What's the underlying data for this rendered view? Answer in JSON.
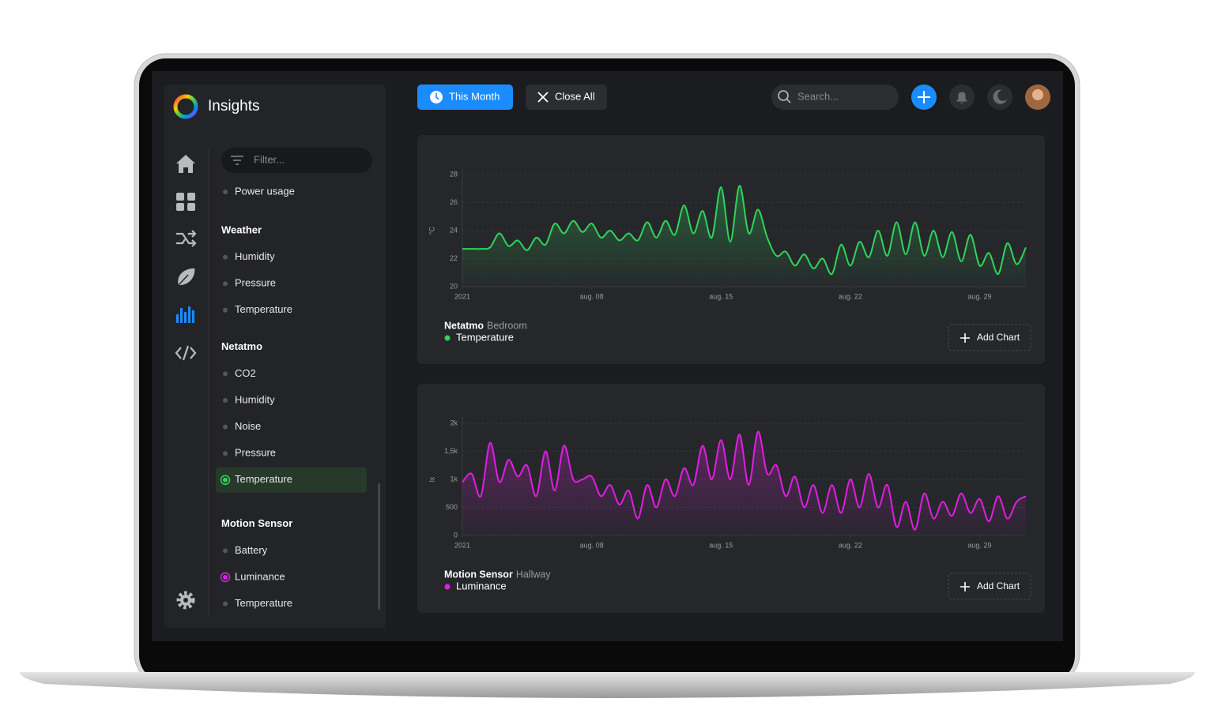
{
  "app": {
    "title": "Insights"
  },
  "toolbar": {
    "period": "This Month",
    "close": "Close All",
    "search": "Search..."
  },
  "sidebar": {
    "filter": "Filter...",
    "top_items": [
      {
        "label": "Power usage"
      }
    ],
    "groups": [
      {
        "title": "Weather",
        "items": [
          {
            "label": "Humidity"
          },
          {
            "label": "Pressure"
          },
          {
            "label": "Temperature"
          }
        ]
      },
      {
        "title": "Netatmo",
        "items": [
          {
            "label": "CO2"
          },
          {
            "label": "Humidity"
          },
          {
            "label": "Noise"
          },
          {
            "label": "Pressure"
          },
          {
            "label": "Temperature",
            "color": "#2fd45a",
            "selected": true
          }
        ]
      },
      {
        "title": "Motion Sensor",
        "items": [
          {
            "label": "Battery"
          },
          {
            "label": "Luminance",
            "color": "#e01ee0"
          },
          {
            "label": "Temperature"
          }
        ]
      }
    ]
  },
  "chart_data": [
    {
      "type": "line",
      "device": "Netatmo",
      "location": "Bedroom",
      "ylabel": "°C",
      "action": "Add Chart",
      "grid": true,
      "x": [
        0,
        0.5,
        1,
        1.5,
        2,
        2.5,
        3,
        3.5,
        4,
        4.5,
        5,
        5.5,
        6,
        6.5,
        7,
        7.5,
        8,
        8.5,
        9,
        9.5,
        10,
        10.5,
        11,
        11.5,
        12,
        12.5,
        13,
        13.5,
        14,
        14.5,
        15,
        15.5,
        16,
        16.5,
        17,
        17.5,
        18,
        18.5,
        19,
        19.5,
        20,
        20.5,
        21,
        21.5,
        22,
        22.5,
        23,
        23.5,
        24,
        24.5,
        25,
        25.5,
        26,
        26.5,
        27,
        27.5,
        28,
        28.5,
        29,
        29.5,
        30,
        30.5
      ],
      "xlim": [
        0,
        30.5
      ],
      "xticks": [
        {
          "value": 0,
          "label": "2021"
        },
        {
          "value": 7,
          "label": "aug. 08"
        },
        {
          "value": 14,
          "label": "aug. 15"
        },
        {
          "value": 21,
          "label": "aug. 22"
        },
        {
          "value": 28,
          "label": "aug. 29"
        }
      ],
      "ylim": [
        20,
        28
      ],
      "yticks": [
        20,
        22,
        24,
        26,
        28
      ],
      "series": [
        {
          "name": "Temperature",
          "color": "#2fd45a",
          "values": [
            22.7,
            22.7,
            22.7,
            22.8,
            23.8,
            22.9,
            23.3,
            22.6,
            23.5,
            23.0,
            24.5,
            23.8,
            24.7,
            23.9,
            24.5,
            23.5,
            24.0,
            23.3,
            23.8,
            23.3,
            24.6,
            23.5,
            24.7,
            23.7,
            25.8,
            23.8,
            25.4,
            23.5,
            27.1,
            23.2,
            27.2,
            23.8,
            25.5,
            23.5,
            22.2,
            22.5,
            21.5,
            22.3,
            21.3,
            22.0,
            20.9,
            23.0,
            21.5,
            23.2,
            22.1,
            24.0,
            22.2,
            24.6,
            22.3,
            24.6,
            22.2,
            24.0,
            22.1,
            23.9,
            21.8,
            23.7,
            21.5,
            22.4,
            20.9,
            23.1,
            21.6,
            22.8
          ]
        }
      ]
    },
    {
      "type": "line",
      "device": "Motion Sensor",
      "location": "Hallway",
      "ylabel": "lx",
      "action": "Add Chart",
      "grid": true,
      "x": [
        0,
        0.5,
        1,
        1.5,
        2,
        2.5,
        3,
        3.5,
        4,
        4.5,
        5,
        5.5,
        6,
        6.5,
        7,
        7.5,
        8,
        8.5,
        9,
        9.5,
        10,
        10.5,
        11,
        11.5,
        12,
        12.5,
        13,
        13.5,
        14,
        14.5,
        15,
        15.5,
        16,
        16.5,
        17,
        17.5,
        18,
        18.5,
        19,
        19.5,
        20,
        20.5,
        21,
        21.5,
        22,
        22.5,
        23,
        23.5,
        24,
        24.5,
        25,
        25.5,
        26,
        26.5,
        27,
        27.5,
        28,
        28.5,
        29,
        29.5,
        30,
        30.5
      ],
      "xlim": [
        0,
        30.5
      ],
      "xticks": [
        {
          "value": 0,
          "label": "2021"
        },
        {
          "value": 7,
          "label": "aug. 08"
        },
        {
          "value": 14,
          "label": "aug. 15"
        },
        {
          "value": 21,
          "label": "aug. 22"
        },
        {
          "value": 28,
          "label": "aug. 29"
        }
      ],
      "ylim": [
        0,
        2000
      ],
      "yticks": [
        0,
        500,
        {
          "value": 1000,
          "label": "1k"
        },
        {
          "value": 1500,
          "label": "1,5k"
        },
        {
          "value": 2000,
          "label": "2k"
        }
      ],
      "series": [
        {
          "name": "Luminance",
          "color": "#e01ee0",
          "values": [
            950,
            1100,
            700,
            1650,
            950,
            1350,
            1050,
            1250,
            700,
            1500,
            800,
            1600,
            1000,
            1000,
            1050,
            700,
            900,
            550,
            800,
            300,
            900,
            500,
            1000,
            700,
            1200,
            900,
            1600,
            1000,
            1700,
            1000,
            1800,
            900,
            1850,
            1100,
            1250,
            700,
            1050,
            500,
            900,
            400,
            900,
            400,
            1000,
            500,
            1100,
            500,
            900,
            150,
            600,
            100,
            750,
            300,
            600,
            350,
            750,
            400,
            650,
            250,
            700,
            300,
            600,
            700
          ]
        }
      ]
    }
  ]
}
